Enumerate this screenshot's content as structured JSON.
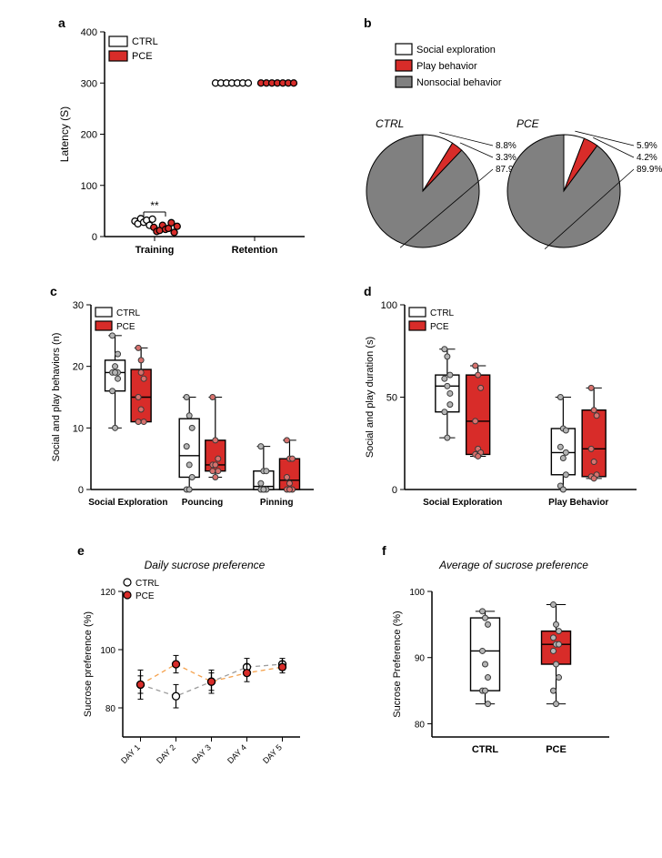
{
  "colors": {
    "ctrl_fill": "#ffffff",
    "pce_fill": "#d82c29",
    "pce_fill_light": "#e43f3c",
    "nonsocial": "#808080",
    "axis": "#000000",
    "text": "#000000",
    "marker_edge": "#3a3a3a",
    "marker_fill_ctrl": "#b5b5b5",
    "marker_fill_pce": "#d8716d",
    "dash_ctrl": "#9c9c9c",
    "dash_pce": "#f5a24d"
  },
  "panel_a": {
    "label": "a",
    "ylabel": "Latency (S)",
    "categories": [
      "Training",
      "Retention"
    ],
    "ylim": [
      0,
      400
    ],
    "ytick_step": 100,
    "legend": [
      {
        "label": "CTRL",
        "fill": "#ffffff",
        "stroke": "#000"
      },
      {
        "label": "PCE",
        "fill": "#d82c29",
        "stroke": "#000"
      }
    ],
    "training": {
      "ctrl_points": [
        30,
        25,
        35,
        28,
        32,
        22,
        34
      ],
      "pce_points": [
        18,
        10,
        12,
        22,
        14,
        16,
        27,
        8,
        20
      ]
    },
    "retention": {
      "ctrl_points": [
        300,
        300,
        300,
        300,
        300,
        300,
        300
      ],
      "pce_points": [
        300,
        300,
        300,
        300,
        300,
        300,
        300
      ]
    },
    "sig": "**"
  },
  "panel_b": {
    "label": "b",
    "legend": [
      {
        "label": "Social exploration",
        "fill": "#ffffff",
        "stroke": "#000"
      },
      {
        "label": "Play behavior",
        "fill": "#d82c29",
        "stroke": "#000"
      },
      {
        "label": "Nonsocial behavior",
        "fill": "#808080",
        "stroke": "#000"
      }
    ],
    "pies": [
      {
        "title": "CTRL",
        "slices": [
          {
            "value": 8.8,
            "label": "8.8%",
            "fill": "#ffffff"
          },
          {
            "value": 3.3,
            "label": "3.3%",
            "fill": "#d82c29"
          },
          {
            "value": 87.9,
            "label": "87.9%",
            "fill": "#808080"
          }
        ]
      },
      {
        "title": "PCE",
        "slices": [
          {
            "value": 5.9,
            "label": "5.9%",
            "fill": "#ffffff"
          },
          {
            "value": 4.2,
            "label": "4.2%",
            "fill": "#d82c29"
          },
          {
            "value": 89.9,
            "label": "89.9%",
            "fill": "#808080"
          }
        ]
      }
    ]
  },
  "panel_c": {
    "label": "c",
    "ylabel": "Social and play behaviors (n)",
    "categories": [
      "Social Exploration",
      "Pouncing",
      "Pinning"
    ],
    "ylim": [
      0,
      30
    ],
    "ytick_step": 10,
    "groups": [
      "CTRL",
      "PCE"
    ],
    "data": {
      "Social Exploration": {
        "CTRL": {
          "min": 10,
          "q1": 16,
          "med": 19,
          "q3": 21,
          "max": 25,
          "points": [
            25,
            20,
            19,
            19,
            19,
            18,
            16,
            10,
            22
          ]
        },
        "PCE": {
          "min": 11,
          "q1": 11,
          "med": 15,
          "q3": 19.5,
          "max": 23,
          "points": [
            23,
            19,
            18,
            15,
            13,
            11,
            11,
            21
          ]
        }
      },
      "Pouncing": {
        "CTRL": {
          "min": 0,
          "q1": 2,
          "med": 5.5,
          "q3": 11.5,
          "max": 15,
          "points": [
            15,
            12,
            10,
            7,
            4,
            2,
            0,
            0
          ]
        },
        "PCE": {
          "min": 2,
          "q1": 3,
          "med": 4,
          "q3": 8,
          "max": 15,
          "points": [
            15,
            8,
            5,
            4,
            4,
            3,
            3,
            2
          ]
        }
      },
      "Pinning": {
        "CTRL": {
          "min": 0,
          "q1": 0,
          "med": 0.5,
          "q3": 3,
          "max": 7,
          "points": [
            7,
            3,
            3,
            1,
            0,
            0,
            0,
            0
          ]
        },
        "PCE": {
          "min": 0,
          "q1": 0,
          "med": 1.5,
          "q3": 5,
          "max": 8,
          "points": [
            8,
            5,
            5,
            2,
            1,
            0,
            0,
            0
          ]
        }
      }
    }
  },
  "panel_d": {
    "label": "d",
    "ylabel": "Social and play duration (s)",
    "categories": [
      "Social Exploration",
      "Play Behavior"
    ],
    "ylim": [
      0,
      100
    ],
    "ytick_step": 50,
    "groups": [
      "CTRL",
      "PCE"
    ],
    "data": {
      "Social Exploration": {
        "CTRL": {
          "min": 28,
          "q1": 42,
          "med": 56,
          "q3": 62,
          "max": 76,
          "points": [
            76,
            72,
            62,
            60,
            56,
            52,
            42,
            28,
            46
          ]
        },
        "PCE": {
          "min": 18,
          "q1": 19,
          "med": 37,
          "q3": 62,
          "max": 67,
          "points": [
            67,
            62,
            55,
            37,
            22,
            20,
            19,
            18
          ]
        }
      },
      "Play Behavior": {
        "CTRL": {
          "min": 0,
          "q1": 8,
          "med": 20,
          "q3": 33,
          "max": 50,
          "points": [
            50,
            33,
            32,
            23,
            17,
            8,
            2,
            0,
            20
          ]
        },
        "PCE": {
          "min": 6,
          "q1": 7,
          "med": 22,
          "q3": 43,
          "max": 55,
          "points": [
            55,
            43,
            40,
            22,
            15,
            8,
            7,
            6
          ]
        }
      }
    }
  },
  "panel_e": {
    "label": "e",
    "title": "Daily sucrose preference",
    "ylabel": "Sucrose preference (%)",
    "categories": [
      "DAY 1",
      "DAY 2",
      "DAY 3",
      "DAY 4",
      "DAY 5"
    ],
    "ylim": [
      70,
      120
    ],
    "yticks": [
      80,
      100,
      120
    ],
    "legend": [
      {
        "label": "CTRL",
        "fill": "#ffffff"
      },
      {
        "label": "PCE",
        "fill": "#d82c29"
      }
    ],
    "series": {
      "CTRL": {
        "mean": [
          88,
          84,
          89,
          94,
          95
        ],
        "err": [
          5,
          4,
          4,
          3,
          2
        ]
      },
      "PCE": {
        "mean": [
          88,
          95,
          89,
          92,
          94
        ],
        "err": [
          3,
          3,
          3,
          3,
          2
        ]
      }
    }
  },
  "panel_f": {
    "label": "f",
    "title": "Average of sucrose preference",
    "ylabel": "Sucrose Preference (%)",
    "categories": [
      "CTRL",
      "PCE"
    ],
    "ylim": [
      78,
      100
    ],
    "yticks": [
      80,
      90,
      100
    ],
    "data": {
      "CTRL": {
        "min": 83,
        "q1": 85,
        "med": 91,
        "q3": 96,
        "max": 97,
        "points": [
          97,
          96,
          95,
          91,
          89,
          87,
          85,
          85,
          83
        ]
      },
      "PCE": {
        "min": 83,
        "q1": 89,
        "med": 92,
        "q3": 94,
        "max": 98,
        "points": [
          98,
          95,
          94,
          93,
          92,
          92,
          91,
          89,
          87,
          85,
          83
        ]
      }
    }
  }
}
